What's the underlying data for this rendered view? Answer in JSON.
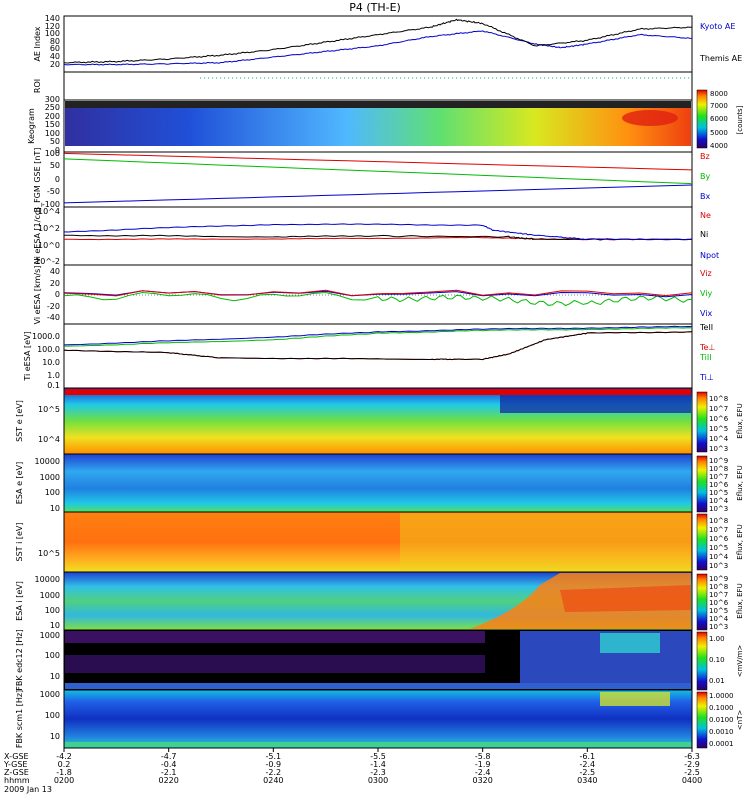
{
  "title": "P4 (TH-E)",
  "colors": {
    "kyoto": "#0000cc",
    "themis": "#000000",
    "red": "#dd0000",
    "green": "#00bb00",
    "blue": "#0000cc",
    "black": "#000000"
  },
  "time_axis": {
    "range_minutes": [
      0,
      120
    ],
    "ticks_minutes": [
      0,
      20,
      40,
      60,
      80,
      100,
      120
    ],
    "rows": [
      {
        "label": "X-GSE",
        "values": [
          "-4.2",
          "-4.7",
          "-5.1",
          "-5.5",
          "-5.8",
          "-6.1",
          "-6.3"
        ]
      },
      {
        "label": "Y-GSE",
        "values": [
          "0.2",
          "-0.4",
          "-0.9",
          "-1.4",
          "-1.9",
          "-2.4",
          "-2.9"
        ]
      },
      {
        "label": "Z-GSE",
        "values": [
          "-1.8",
          "-2.1",
          "-2.2",
          "-2.3",
          "-2.4",
          "-2.5",
          "-2.5"
        ]
      },
      {
        "label": "hhmm",
        "values": [
          "0200",
          "0220",
          "0240",
          "0300",
          "0320",
          "0340",
          "0400"
        ]
      }
    ],
    "date": "2009 Jan 13"
  },
  "chart_data": [
    {
      "type": "line",
      "panel": "ae",
      "ylabel": "AE Index",
      "yticks": [
        "20",
        "40",
        "60",
        "80",
        "100",
        "120",
        "140"
      ],
      "ylim": [
        0,
        150
      ],
      "series": [
        {
          "name": "Kyoto AE",
          "color": "#0000cc",
          "x": [
            0,
            10,
            20,
            30,
            40,
            50,
            60,
            70,
            80,
            90,
            95,
            100,
            110,
            120
          ],
          "y": [
            20,
            20,
            22,
            25,
            40,
            55,
            70,
            95,
            110,
            75,
            65,
            75,
            100,
            90
          ]
        },
        {
          "name": "Themis AE",
          "color": "#000000",
          "x": [
            0,
            10,
            20,
            30,
            40,
            50,
            60,
            70,
            75,
            80,
            90,
            100,
            110,
            120
          ],
          "y": [
            25,
            28,
            35,
            45,
            60,
            80,
            100,
            120,
            140,
            130,
            70,
            85,
            115,
            120
          ]
        }
      ]
    },
    {
      "type": "line",
      "panel": "roi",
      "ylabel": "ROI",
      "series": [
        {
          "name": "ROI",
          "color": "#00aa88",
          "x": [
            26,
            120
          ],
          "y": [
            1,
            1
          ]
        }
      ]
    },
    {
      "type": "heatmap",
      "panel": "keogram",
      "ylabel": "Keogram",
      "yticks": [
        "0",
        "50",
        "100",
        "150",
        "200",
        "250",
        "300"
      ],
      "ylim": [
        0,
        300
      ],
      "colorbar": {
        "label": "[counts]",
        "ticks": [
          "4000",
          "5000",
          "6000",
          "7000",
          "8000"
        ]
      }
    },
    {
      "type": "line",
      "panel": "bfgm",
      "ylabel": "B_FGM GSE [nT]",
      "yticks": [
        "-100",
        "-50",
        "0",
        "50",
        "100"
      ],
      "ylim": [
        -100,
        100
      ],
      "series": [
        {
          "name": "Bz",
          "color": "#dd0000",
          "x": [
            0,
            120
          ],
          "y": [
            95,
            35
          ]
        },
        {
          "name": "By",
          "color": "#00bb00",
          "x": [
            0,
            120
          ],
          "y": [
            75,
            -15
          ]
        },
        {
          "name": "Bx",
          "color": "#0000cc",
          "x": [
            0,
            120
          ],
          "y": [
            -85,
            -20
          ]
        }
      ]
    },
    {
      "type": "line",
      "panel": "density",
      "ylabel": "Ni eESA [1/cc]",
      "yticks": [
        "10^4",
        "10^2",
        "10^0",
        "10^-2"
      ],
      "ylim_log": [
        -3,
        4
      ],
      "series": [
        {
          "name": "Ne",
          "color": "#dd0000",
          "x": [
            0,
            40,
            80,
            95,
            120
          ],
          "y": [
            0.1,
            0.15,
            0.3,
            0.1,
            0.1
          ]
        },
        {
          "name": "Ni",
          "color": "#000000",
          "x": [
            0,
            40,
            60,
            85,
            90,
            120
          ],
          "y": [
            0.6,
            0.4,
            0.5,
            0.4,
            0.1,
            0.1
          ]
        },
        {
          "name": "Npot",
          "color": "#0000cc",
          "x": [
            0,
            20,
            40,
            60,
            80,
            82,
            90,
            100,
            120
          ],
          "y": [
            1.0,
            1.5,
            1.9,
            1.9,
            1.8,
            1.2,
            0.6,
            0.1,
            0.1
          ]
        }
      ]
    },
    {
      "type": "line",
      "panel": "velocity",
      "ylabel": "Vi eESA [km/s]",
      "yticks": [
        "40",
        "20",
        "0",
        "-20",
        "-40"
      ],
      "ylim": [
        -50,
        50
      ],
      "series": [
        {
          "name": "Viz",
          "color": "#dd0000",
          "x": [
            0,
            120
          ],
          "y": [
            2,
            3
          ]
        },
        {
          "name": "Viy",
          "color": "#00bb00",
          "x": [
            0,
            60,
            80,
            100,
            120
          ],
          "y": [
            -2,
            -3,
            -10,
            -12,
            -8
          ]
        },
        {
          "name": "Vix",
          "color": "#0000cc",
          "x": [
            0,
            120
          ],
          "y": [
            3,
            0
          ]
        }
      ]
    },
    {
      "type": "line",
      "panel": "temperature",
      "ylabel": "Ti eESA [eV]",
      "yticks": [
        "1000.0",
        "100.0",
        "10.0",
        "1.0",
        "0.1"
      ],
      "ylim_log": [
        -1.3,
        3.6
      ],
      "series": [
        {
          "name": "TeII",
          "color": "#000000",
          "x": [
            0,
            20,
            30,
            70,
            80,
            85,
            92,
            100,
            120
          ],
          "y": [
            1.6,
            1.4,
            1.0,
            0.9,
            0.9,
            1.3,
            2.4,
            2.9,
            3.0
          ]
        },
        {
          "name": "Te⊥",
          "color": "#dd0000",
          "x": [
            0,
            20,
            30,
            70,
            80,
            85,
            92,
            100,
            120
          ],
          "y": [
            1.6,
            1.4,
            1.0,
            0.9,
            0.9,
            1.3,
            2.4,
            2.9,
            3.0
          ]
        },
        {
          "name": "TiII",
          "color": "#00bb00",
          "x": [
            0,
            40,
            60,
            80,
            100,
            120
          ],
          "y": [
            1.9,
            2.4,
            2.9,
            3.1,
            3.2,
            3.3
          ]
        },
        {
          "name": "Ti⊥",
          "color": "#0000cc",
          "x": [
            0,
            40,
            60,
            80,
            100,
            120
          ],
          "y": [
            2.0,
            2.6,
            3.0,
            3.2,
            3.3,
            3.4
          ]
        }
      ]
    },
    {
      "type": "heatmap",
      "panel": "sst_e",
      "ylabel": "SST e [eV]",
      "yticks": [
        "10^5",
        "10^4"
      ],
      "colorbar": {
        "label": "Eflux, EFU",
        "ticks": [
          "10^8",
          "10^7",
          "10^6",
          "10^5",
          "10^4",
          "10^3"
        ]
      }
    },
    {
      "type": "heatmap",
      "panel": "esa_e",
      "ylabel": "ESA e [eV]",
      "yticks": [
        "10000",
        "1000",
        "100",
        "10"
      ],
      "colorbar": {
        "label": "Eflux, EFU",
        "ticks": [
          "10^9",
          "10^8",
          "10^7",
          "10^6",
          "10^5",
          "10^4",
          "10^3"
        ]
      }
    },
    {
      "type": "heatmap",
      "panel": "sst_i",
      "ylabel": "SST i [eV]",
      "yticks": [
        "10^5"
      ],
      "colorbar": {
        "label": "Eflux, EFU",
        "ticks": [
          "10^8",
          "10^7",
          "10^6",
          "10^5",
          "10^4",
          "10^3"
        ]
      }
    },
    {
      "type": "heatmap",
      "panel": "esa_i",
      "ylabel": "ESA i [eV]",
      "yticks": [
        "10000",
        "1000",
        "100",
        "10"
      ],
      "colorbar": {
        "label": "Eflux, EFU",
        "ticks": [
          "10^9",
          "10^8",
          "10^7",
          "10^6",
          "10^5",
          "10^4",
          "10^3"
        ]
      }
    },
    {
      "type": "heatmap",
      "panel": "fbk_e",
      "ylabel": "FBK edc12 [Hz]",
      "yticks": [
        "1000",
        "100",
        "10"
      ],
      "colorbar": {
        "label": "<mV/m>",
        "ticks": [
          "1.00",
          "0.10",
          "0.01"
        ]
      }
    },
    {
      "type": "heatmap",
      "panel": "fbk_b",
      "ylabel": "FBK scm1 [Hz]",
      "yticks": [
        "1000",
        "100",
        "10"
      ],
      "colorbar": {
        "label": "<nT>",
        "ticks": [
          "1.0000",
          "0.1000",
          "0.0100",
          "0.0010",
          "0.0001"
        ]
      }
    }
  ]
}
